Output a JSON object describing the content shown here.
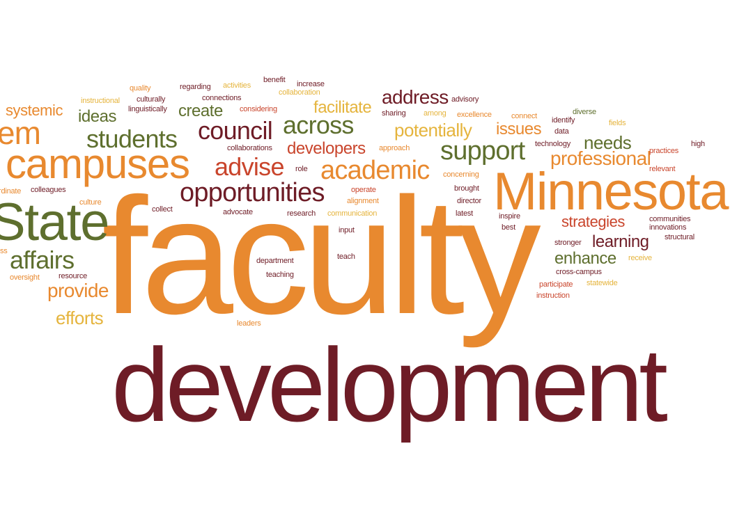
{
  "words": {
    "faculty": "faculty",
    "development": "development",
    "minnesota": "Minnesota",
    "state": "State",
    "campuses": "campuses",
    "system": "em",
    "students": "students",
    "council": "council",
    "across": "across",
    "opportunities": "opportunities",
    "advise": "advise",
    "academic": "academic",
    "support": "support",
    "professional": "professional",
    "developers": "developers",
    "address": "address",
    "facilitate": "facilitate",
    "potentially": "potentially",
    "issues": "issues",
    "needs": "needs",
    "affairs": "affairs",
    "provide": "provide",
    "efforts": "efforts",
    "systemic": "systemic",
    "ideas": "ideas",
    "create": "create",
    "strategies": "strategies",
    "learning": "learning",
    "enhance": "enhance",
    "quality": "quality",
    "regarding": "regarding",
    "activities": "activities",
    "benefit": "benefit",
    "increase": "increase",
    "instructional": "instructional",
    "culturally": "culturally",
    "connections": "connections",
    "collaboration": "collaboration",
    "advisory": "advisory",
    "linguistically": "linguistically",
    "considering": "considering",
    "sharing": "sharing",
    "among": "among",
    "excellence": "excellence",
    "connect": "connect",
    "diverse": "diverse",
    "identify": "identify",
    "fields": "fields",
    "data": "data",
    "collaborations": "collaborations",
    "approach": "approach",
    "technology": "technology",
    "high": "high",
    "practices": "practices",
    "role": "role",
    "concerning": "concerning",
    "relevant": "relevant",
    "ordinate": "rdinate",
    "colleagues": "colleagues",
    "operate": "operate",
    "brought": "brought",
    "culture": "culture",
    "collect": "collect",
    "alignment": "alignment",
    "director": "director",
    "advocate": "advocate",
    "research": "research",
    "communication": "communication",
    "latest": "latest",
    "inspire": "inspire",
    "best": "best",
    "communities": "communities",
    "innovations": "innovations",
    "structural": "structural",
    "input": "input",
    "stronger": "stronger",
    "department": "department",
    "teach": "teach",
    "receive": "receive",
    "resource": "resource",
    "oversight": "oversight",
    "teaching": "teaching",
    "cross_campus": "cross-campus",
    "participate": "participate",
    "statewide": "statewide",
    "instruction": "instruction",
    "leaders": "leaders",
    "ss": "ss"
  },
  "colors": {
    "orange": "#e8892f",
    "maroon": "#6e1c26",
    "red": "#c9452c",
    "green": "#5e6f2e",
    "yellow": "#e5b43d",
    "brown": "#8a4a2a"
  }
}
